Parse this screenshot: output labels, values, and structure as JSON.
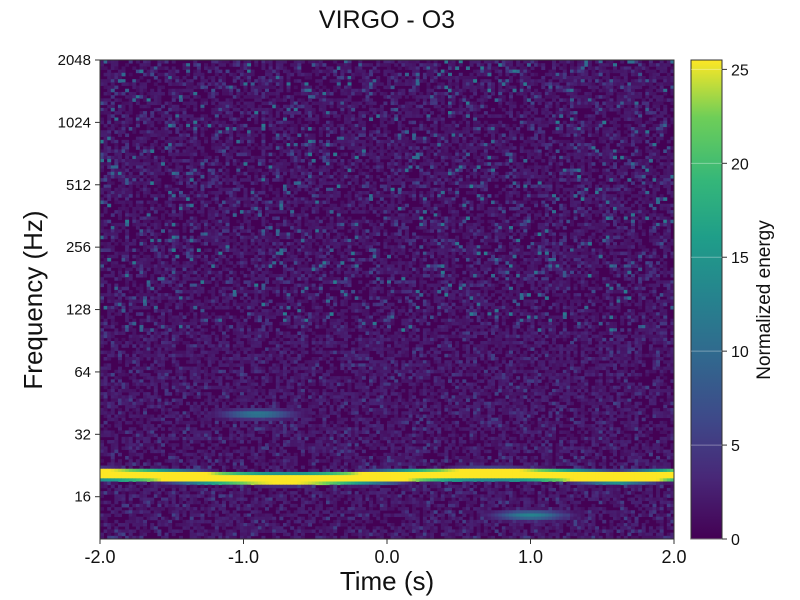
{
  "chart_data": {
    "type": "heatmap",
    "title": "VIRGO - O3",
    "xlabel": "Time (s)",
    "ylabel": "Frequency (Hz)",
    "xlim": [
      -2.0,
      2.0
    ],
    "ylim": [
      10,
      2048
    ],
    "yscale": "log2",
    "x_ticks": [
      {
        "value": -2.0,
        "label": "-2.0"
      },
      {
        "value": -1.0,
        "label": "-1.0"
      },
      {
        "value": 0.0,
        "label": "0.0"
      },
      {
        "value": 1.0,
        "label": "1.0"
      },
      {
        "value": 2.0,
        "label": "2.0"
      }
    ],
    "y_ticks": [
      {
        "value": 16,
        "label": "16"
      },
      {
        "value": 32,
        "label": "32"
      },
      {
        "value": 64,
        "label": "64"
      },
      {
        "value": 128,
        "label": "128"
      },
      {
        "value": 256,
        "label": "256"
      },
      {
        "value": 512,
        "label": "512"
      },
      {
        "value": 1024,
        "label": "1024"
      },
      {
        "value": 2048,
        "label": "2048"
      }
    ],
    "colorbar": {
      "label": "Normalized energy",
      "colormap": "viridis",
      "range": [
        0,
        25.5
      ],
      "ticks": [
        {
          "value": 0,
          "label": "0"
        },
        {
          "value": 5,
          "label": "5"
        },
        {
          "value": 10,
          "label": "10"
        },
        {
          "value": 15,
          "label": "15"
        },
        {
          "value": 20,
          "label": "20"
        },
        {
          "value": 25,
          "label": "25"
        }
      ]
    },
    "features": [
      {
        "kind": "band",
        "freq_hz": 20,
        "time_range": [
          -2.0,
          2.0
        ],
        "energy": 25.5
      },
      {
        "kind": "blob",
        "time_s": -0.9,
        "freq_hz": 40,
        "energy": 12
      },
      {
        "kind": "blob",
        "time_s": 1.0,
        "freq_hz": 13,
        "energy": 13
      },
      {
        "kind": "noise",
        "freq_range": [
          100,
          2048
        ],
        "energy_range": [
          0,
          12
        ]
      }
    ]
  }
}
